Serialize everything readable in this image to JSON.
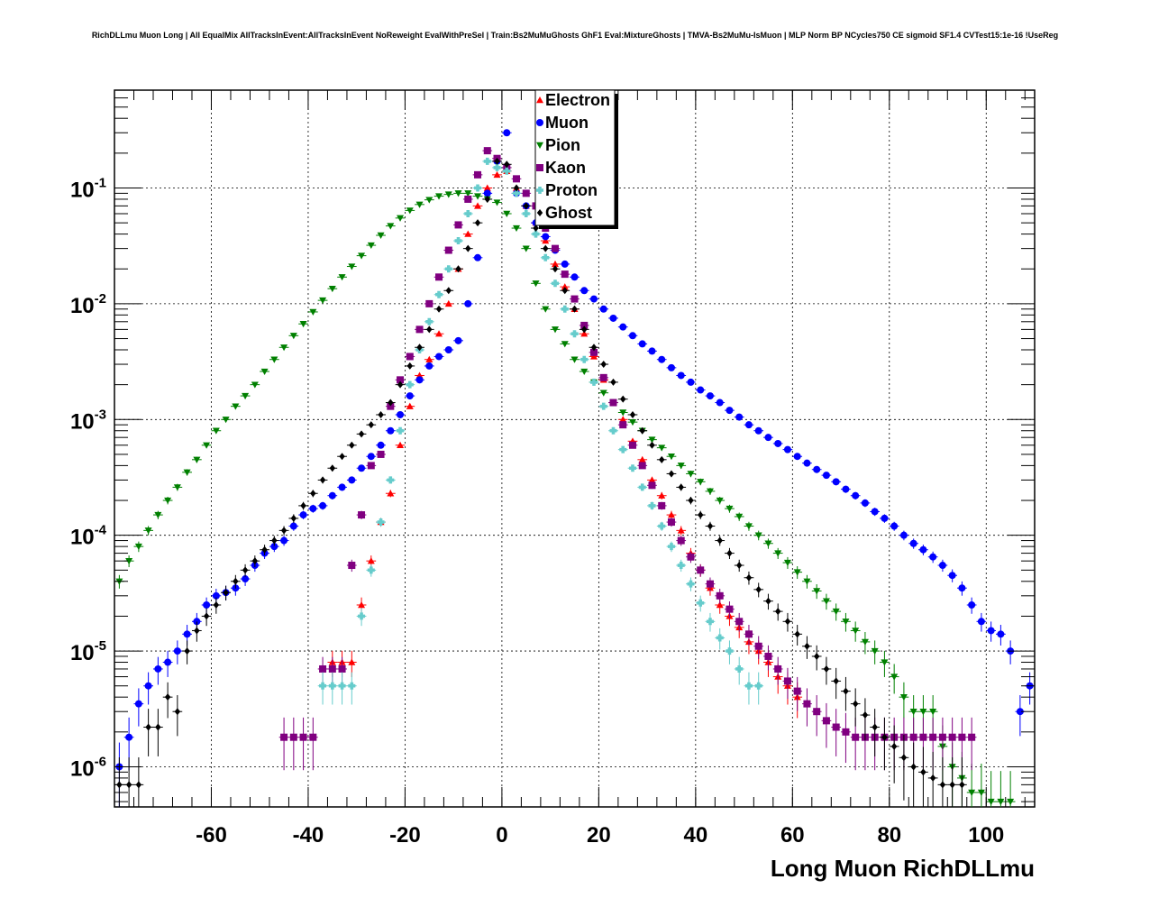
{
  "chart_data": {
    "type": "scatter",
    "title": "RichDLLmu Muon Long | All EqualMix AllTracksInEvent:AllTracksInEvent NoReweight EvalWithPreSel | Train:Bs2MuMuGhosts GhF1 Eval:MixtureGhosts | TMVA-Bs2MuMu-IsMuon | MLP Norm BP NCycles750 CE sigmoid SF1.4 CVTest15:1e-16 !UseReg",
    "xlabel": "Long Muon RichDLLmu",
    "ylabel": "",
    "xlim": [
      -80,
      110
    ],
    "ylim": [
      4.5e-07,
      0.7
    ],
    "y_scale": "log",
    "grid": true,
    "legend_position": "top-center",
    "x_ticks": [
      -60,
      -40,
      -20,
      0,
      20,
      40,
      60,
      80,
      100
    ],
    "y_ticks": [
      {
        "base": "10",
        "exp": "-6",
        "value": 1e-06
      },
      {
        "base": "10",
        "exp": "-5",
        "value": 1e-05
      },
      {
        "base": "10",
        "exp": "-4",
        "value": 0.0001
      },
      {
        "base": "10",
        "exp": "-3",
        "value": 0.001
      },
      {
        "base": "10",
        "exp": "-2",
        "value": 0.01
      },
      {
        "base": "10",
        "exp": "-1",
        "value": 0.1
      }
    ],
    "series": [
      {
        "name": "Electron",
        "color": "#ff0000",
        "marker": "triangle-up",
        "x": [
          -35,
          -33,
          -31,
          -29,
          -27,
          -25,
          -23,
          -21,
          -19,
          -17,
          -15,
          -13,
          -11,
          -9,
          -7,
          -5,
          -3,
          -1,
          1,
          3,
          5,
          7,
          9,
          11,
          13,
          15,
          17,
          19,
          21,
          23,
          25,
          27,
          29,
          31,
          33,
          35,
          37,
          39,
          41,
          43,
          45,
          47,
          49,
          51,
          53,
          55,
          57,
          59,
          61
        ],
        "y": [
          8e-06,
          8e-06,
          8e-06,
          2.5e-05,
          6e-05,
          0.00013,
          0.00023,
          0.0006,
          0.0013,
          0.0024,
          0.0033,
          0.0055,
          0.01,
          0.02,
          0.04,
          0.07,
          0.1,
          0.13,
          0.14,
          0.1,
          0.07,
          0.05,
          0.035,
          0.022,
          0.014,
          0.009,
          0.0055,
          0.0035,
          0.0022,
          0.0014,
          0.001,
          0.00065,
          0.00045,
          0.0003,
          0.00022,
          0.00015,
          0.00011,
          7e-05,
          5e-05,
          3.5e-05,
          2.5e-05,
          2e-05,
          1.6e-05,
          1.2e-05,
          1e-05,
          8e-06,
          6e-06,
          5e-06,
          4e-06
        ]
      },
      {
        "name": "Muon",
        "color": "#0000ff",
        "marker": "circle",
        "x": [
          -79,
          -77,
          -75,
          -73,
          -71,
          -69,
          -67,
          -65,
          -63,
          -61,
          -59,
          -57,
          -55,
          -53,
          -51,
          -49,
          -47,
          -45,
          -43,
          -41,
          -39,
          -37,
          -35,
          -33,
          -31,
          -29,
          -27,
          -25,
          -23,
          -21,
          -19,
          -17,
          -15,
          -13,
          -11,
          -9,
          -7,
          -5,
          -3,
          -1,
          1,
          3,
          5,
          7,
          9,
          11,
          13,
          15,
          17,
          19,
          21,
          23,
          25,
          27,
          29,
          31,
          33,
          35,
          37,
          39,
          41,
          43,
          45,
          47,
          49,
          51,
          53,
          55,
          57,
          59,
          61,
          63,
          65,
          67,
          69,
          71,
          73,
          75,
          77,
          79,
          81,
          83,
          85,
          87,
          89,
          91,
          93,
          95,
          97,
          99,
          101,
          103,
          105,
          107,
          109
        ],
        "y": [
          1e-06,
          1.8e-06,
          3.5e-06,
          5e-06,
          7e-06,
          8e-06,
          1e-05,
          1.4e-05,
          1.8e-05,
          2.5e-05,
          3e-05,
          3.2e-05,
          3.5e-05,
          4.2e-05,
          5.5e-05,
          7e-05,
          8e-05,
          9e-05,
          0.00012,
          0.00015,
          0.00017,
          0.00018,
          0.00022,
          0.00026,
          0.0003,
          0.00038,
          0.00048,
          0.0006,
          0.0008,
          0.0011,
          0.0016,
          0.0022,
          0.0029,
          0.0035,
          0.004,
          0.0048,
          0.01,
          0.025,
          0.09,
          0.17,
          0.3,
          0.09,
          0.07,
          0.05,
          0.038,
          0.029,
          0.022,
          0.017,
          0.013,
          0.011,
          0.009,
          0.0075,
          0.0063,
          0.0053,
          0.0045,
          0.0039,
          0.0033,
          0.0028,
          0.0024,
          0.0021,
          0.0018,
          0.0016,
          0.0014,
          0.0012,
          0.00105,
          0.0009,
          0.0008,
          0.0007,
          0.00062,
          0.00055,
          0.00048,
          0.00042,
          0.00037,
          0.00033,
          0.00029,
          0.00025,
          0.00022,
          0.00019,
          0.00016,
          0.00014,
          0.00012,
          0.0001,
          8.5e-05,
          7.5e-05,
          6.5e-05,
          5.5e-05,
          4.5e-05,
          3.5e-05,
          2.5e-05,
          1.8e-05,
          1.5e-05,
          1.4e-05,
          1e-05,
          3e-06,
          5e-06
        ]
      },
      {
        "name": "Pion",
        "color": "#008000",
        "marker": "triangle-down",
        "x": [
          -79,
          -77,
          -75,
          -73,
          -71,
          -69,
          -67,
          -65,
          -63,
          -61,
          -59,
          -57,
          -55,
          -53,
          -51,
          -49,
          -47,
          -45,
          -43,
          -41,
          -39,
          -37,
          -35,
          -33,
          -31,
          -29,
          -27,
          -25,
          -23,
          -21,
          -19,
          -17,
          -15,
          -13,
          -11,
          -9,
          -7,
          -5,
          -3,
          -1,
          1,
          3,
          5,
          7,
          9,
          11,
          13,
          15,
          17,
          19,
          21,
          23,
          25,
          27,
          29,
          31,
          33,
          35,
          37,
          39,
          41,
          43,
          45,
          47,
          49,
          51,
          53,
          55,
          57,
          59,
          61,
          63,
          65,
          67,
          69,
          71,
          73,
          75,
          77,
          79,
          81,
          83,
          85,
          87,
          89,
          91,
          93,
          95,
          97,
          99,
          101,
          103,
          105
        ],
        "y": [
          4e-05,
          6e-05,
          8e-05,
          0.00011,
          0.00015,
          0.0002,
          0.00026,
          0.00035,
          0.00045,
          0.0006,
          0.0008,
          0.001,
          0.0013,
          0.0016,
          0.002,
          0.0026,
          0.0033,
          0.0042,
          0.0053,
          0.0067,
          0.0085,
          0.0107,
          0.0135,
          0.017,
          0.021,
          0.026,
          0.032,
          0.039,
          0.047,
          0.055,
          0.064,
          0.072,
          0.079,
          0.085,
          0.088,
          0.09,
          0.09,
          0.085,
          0.08,
          0.075,
          0.06,
          0.045,
          0.03,
          0.015,
          0.009,
          0.006,
          0.0045,
          0.0033,
          0.0026,
          0.0021,
          0.0017,
          0.0014,
          0.00115,
          0.00095,
          0.0008,
          0.00067,
          0.00057,
          0.00048,
          0.0004,
          0.00034,
          0.00029,
          0.00024,
          0.0002,
          0.00017,
          0.000145,
          0.00012,
          0.0001,
          8.5e-05,
          7e-05,
          5.8e-05,
          4.8e-05,
          4e-05,
          3.3e-05,
          2.7e-05,
          2.2e-05,
          1.8e-05,
          1.5e-05,
          1.2e-05,
          1e-05,
          8e-06,
          6e-06,
          4e-06,
          3e-06,
          3e-06,
          3e-06,
          1.5e-06,
          1e-06,
          8e-07,
          6e-07,
          6e-07,
          5e-07,
          5e-07,
          5e-07
        ]
      },
      {
        "name": "Kaon",
        "color": "#800080",
        "marker": "square",
        "x": [
          -45,
          -43,
          -41,
          -39,
          -37,
          -35,
          -33,
          -31,
          -29,
          -27,
          -25,
          -23,
          -21,
          -19,
          -17,
          -15,
          -13,
          -11,
          -9,
          -7,
          -5,
          -3,
          -1,
          1,
          3,
          5,
          7,
          9,
          11,
          13,
          15,
          17,
          19,
          21,
          23,
          25,
          27,
          29,
          31,
          33,
          35,
          37,
          39,
          41,
          43,
          45,
          47,
          49,
          51,
          53,
          55,
          57,
          59,
          61,
          63,
          65,
          67,
          69,
          71,
          73,
          75,
          77,
          79,
          81,
          83,
          85,
          87,
          89,
          91,
          93,
          95,
          97
        ],
        "y": [
          1.8e-06,
          1.8e-06,
          1.8e-06,
          1.8e-06,
          7e-06,
          7e-06,
          7e-06,
          5.5e-05,
          0.00015,
          0.0004,
          0.0005,
          0.0013,
          0.0022,
          0.0035,
          0.006,
          0.01,
          0.017,
          0.029,
          0.048,
          0.08,
          0.13,
          0.21,
          0.18,
          0.15,
          0.12,
          0.09,
          0.07,
          0.045,
          0.03,
          0.018,
          0.011,
          0.0065,
          0.0038,
          0.0023,
          0.0014,
          0.0009,
          0.0006,
          0.0004,
          0.00027,
          0.00018,
          0.00013,
          9e-05,
          6.5e-05,
          5e-05,
          3.8e-05,
          3e-05,
          2.3e-05,
          1.8e-05,
          1.4e-05,
          1.1e-05,
          9e-06,
          7e-06,
          5.5e-06,
          4.5e-06,
          3.5e-06,
          3e-06,
          2.5e-06,
          2.2e-06,
          2e-06,
          1.8e-06,
          1.8e-06,
          1.8e-06,
          1.8e-06,
          1.8e-06,
          1.8e-06,
          1.8e-06,
          1.8e-06,
          1.8e-06,
          1.8e-06,
          1.8e-06,
          1.8e-06,
          1.8e-06
        ]
      },
      {
        "name": "Proton",
        "color": "#66cccc",
        "marker": "cross",
        "x": [
          -37,
          -35,
          -33,
          -31,
          -29,
          -27,
          -25,
          -23,
          -21,
          -19,
          -17,
          -15,
          -13,
          -11,
          -9,
          -7,
          -5,
          -3,
          -1,
          1,
          3,
          5,
          7,
          9,
          11,
          13,
          15,
          17,
          19,
          21,
          23,
          25,
          27,
          29,
          31,
          33,
          35,
          37,
          39,
          41,
          43,
          45,
          47,
          49,
          51,
          53
        ],
        "y": [
          5e-06,
          5e-06,
          5e-06,
          5e-06,
          2e-05,
          5e-05,
          0.00013,
          0.0003,
          0.0008,
          0.002,
          0.004,
          0.007,
          0.012,
          0.02,
          0.035,
          0.06,
          0.1,
          0.17,
          0.15,
          0.14,
          0.09,
          0.06,
          0.04,
          0.025,
          0.015,
          0.009,
          0.0055,
          0.0033,
          0.0021,
          0.0013,
          0.0008,
          0.00055,
          0.00038,
          0.00026,
          0.00018,
          0.00012,
          8e-05,
          5.5e-05,
          3.8e-05,
          2.6e-05,
          1.8e-05,
          1.3e-05,
          1e-05,
          7e-06,
          5e-06,
          5e-06
        ]
      },
      {
        "name": "Ghost",
        "color": "#000000",
        "marker": "diamond",
        "x": [
          -79,
          -77,
          -75,
          -73,
          -71,
          -69,
          -67,
          -65,
          -63,
          -61,
          -59,
          -57,
          -55,
          -53,
          -51,
          -49,
          -47,
          -45,
          -43,
          -41,
          -39,
          -37,
          -35,
          -33,
          -31,
          -29,
          -27,
          -25,
          -23,
          -21,
          -19,
          -17,
          -15,
          -13,
          -11,
          -9,
          -7,
          -5,
          -3,
          -1,
          1,
          3,
          5,
          7,
          9,
          11,
          13,
          15,
          17,
          19,
          21,
          23,
          25,
          27,
          29,
          31,
          33,
          35,
          37,
          39,
          41,
          43,
          45,
          47,
          49,
          51,
          53,
          55,
          57,
          59,
          61,
          63,
          65,
          67,
          69,
          71,
          73,
          75,
          77,
          79,
          81,
          83,
          85,
          87,
          89,
          91,
          93,
          95
        ],
        "y": [
          7e-07,
          7e-07,
          7e-07,
          2.2e-06,
          2.2e-06,
          4e-06,
          3e-06,
          1e-05,
          1.5e-05,
          2e-05,
          2.5e-05,
          3.2e-05,
          4e-05,
          5e-05,
          6e-05,
          7.5e-05,
          9e-05,
          0.00011,
          0.00014,
          0.00018,
          0.00023,
          0.0003,
          0.00038,
          0.00048,
          0.0006,
          0.00075,
          0.0009,
          0.0011,
          0.0014,
          0.002,
          0.0029,
          0.0042,
          0.006,
          0.009,
          0.013,
          0.02,
          0.03,
          0.05,
          0.08,
          0.17,
          0.16,
          0.1,
          0.07,
          0.045,
          0.03,
          0.02,
          0.013,
          0.009,
          0.006,
          0.0042,
          0.003,
          0.0021,
          0.0015,
          0.0011,
          0.0008,
          0.0006,
          0.00045,
          0.00034,
          0.00026,
          0.0002,
          0.00015,
          0.00012,
          9e-05,
          7e-05,
          5.5e-05,
          4.3e-05,
          3.4e-05,
          2.7e-05,
          2.2e-05,
          1.8e-05,
          1.4e-05,
          1.1e-05,
          9e-06,
          7e-06,
          5.5e-06,
          4.5e-06,
          3.5e-06,
          2.8e-06,
          2.2e-06,
          1.8e-06,
          1.5e-06,
          1.2e-06,
          1e-06,
          9e-07,
          8e-07,
          7e-07,
          7e-07,
          7e-07
        ]
      }
    ]
  }
}
